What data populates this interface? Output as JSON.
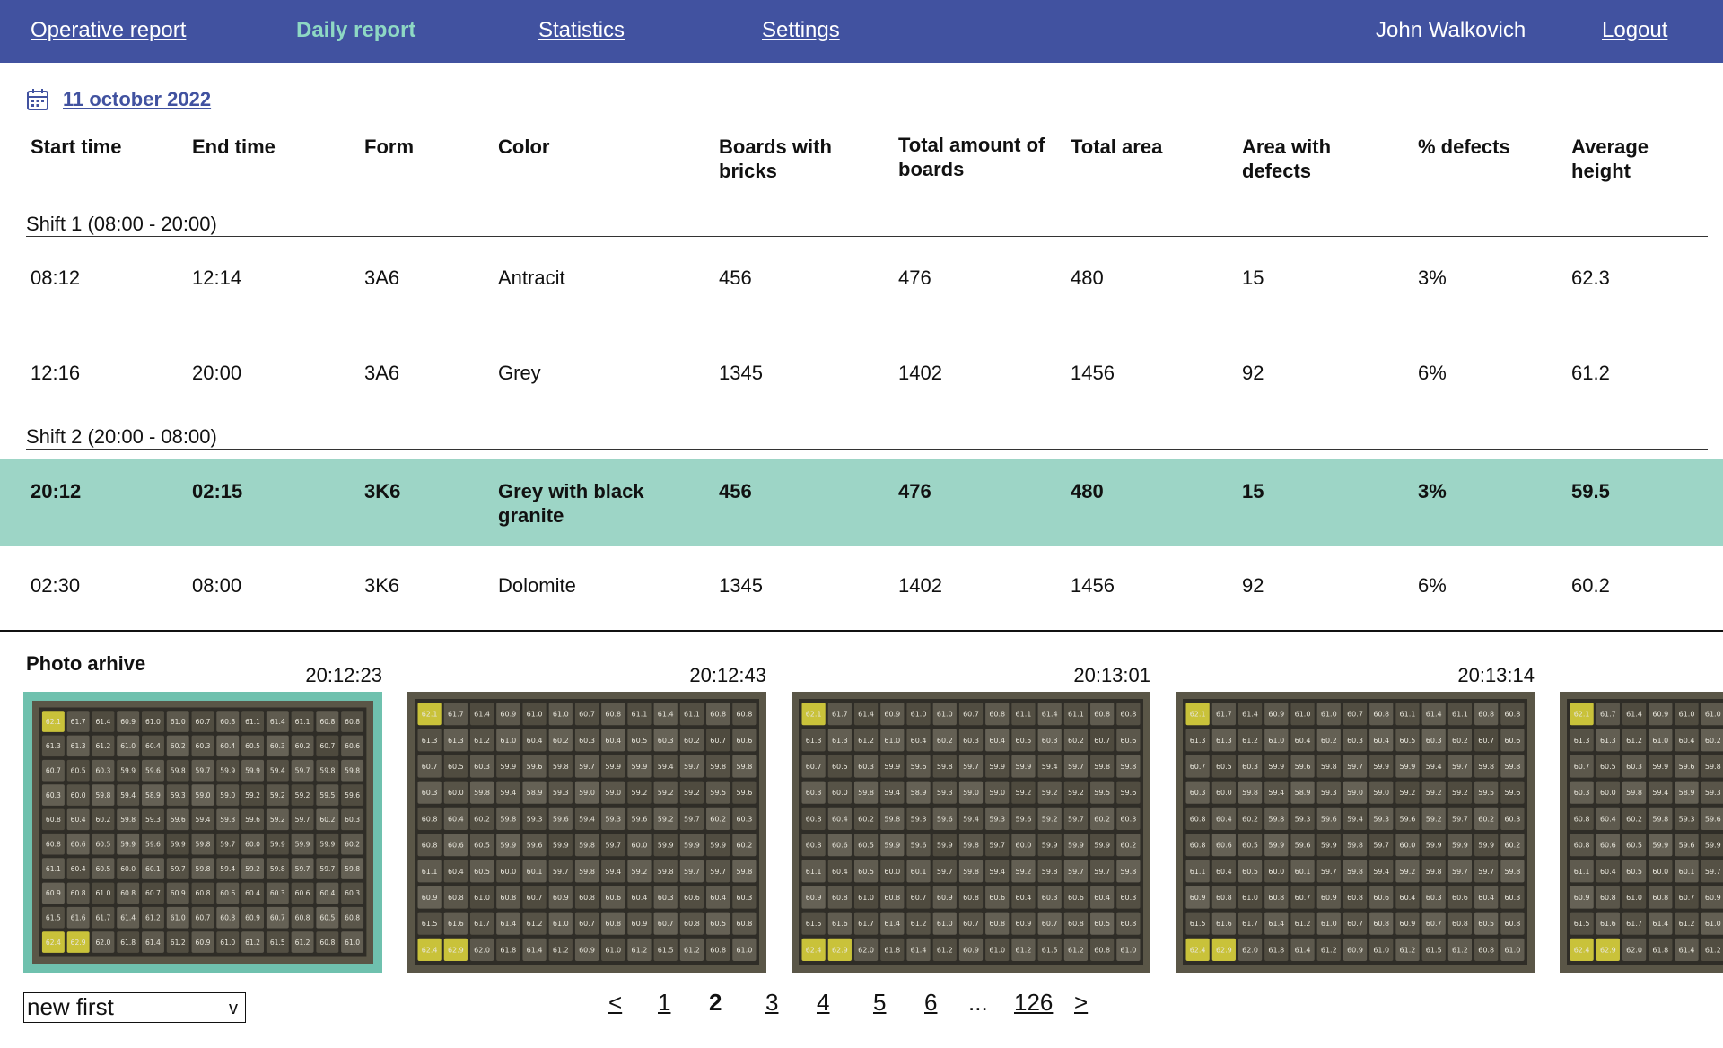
{
  "nav": {
    "items": [
      {
        "label": "Operative report",
        "active": false
      },
      {
        "label": "Daily report",
        "active": true
      },
      {
        "label": "Statistics",
        "active": false
      },
      {
        "label": "Settings",
        "active": false
      }
    ],
    "user_name": "John Walkovich",
    "logout_label": "Logout"
  },
  "date": {
    "label": "11 october 2022",
    "icon": "calendar-icon"
  },
  "table": {
    "headers": [
      "Start time",
      "End time",
      "Form",
      "Color",
      "Boards with bricks",
      "Total amount of boards",
      "Total area",
      "Area with defects",
      "% defects",
      "Average height"
    ],
    "shifts": [
      {
        "label": "Shift 1 (08:00 - 20:00)",
        "rows": [
          {
            "start": "08:12",
            "end": "12:14",
            "form": "3A6",
            "color": "Antracit",
            "boards_with_bricks": "456",
            "total_boards": "476",
            "total_area": "480",
            "area_defects": "15",
            "pct_defects": "3%",
            "avg_height": "62.3",
            "selected": false
          },
          {
            "start": "12:16",
            "end": "20:00",
            "form": "3A6",
            "color": "Grey",
            "boards_with_bricks": "1345",
            "total_boards": "1402",
            "total_area": "1456",
            "area_defects": "92",
            "pct_defects": "6%",
            "avg_height": "61.2",
            "selected": false
          }
        ]
      },
      {
        "label": "Shift 2 (20:00 - 08:00)",
        "rows": [
          {
            "start": "20:12",
            "end": "02:15",
            "form": "3K6",
            "color": "Grey with black granite",
            "boards_with_bricks": "456",
            "total_boards": "476",
            "total_area": "480",
            "area_defects": "15",
            "pct_defects": "3%",
            "avg_height": "59.5",
            "selected": true
          },
          {
            "start": "02:30",
            "end": "08:00",
            "form": "3K6",
            "color": "Dolomite",
            "boards_with_bricks": "1345",
            "total_boards": "1402",
            "total_area": "1456",
            "area_defects": "92",
            "pct_defects": "6%",
            "avg_height": "60.2",
            "selected": false
          }
        ]
      }
    ]
  },
  "archive": {
    "title": "Photo arhive",
    "photos": [
      {
        "time": "20:12:23",
        "selected": true
      },
      {
        "time": "20:12:43",
        "selected": false
      },
      {
        "time": "20:13:01",
        "selected": false
      },
      {
        "time": "20:13:14",
        "selected": false
      },
      {
        "time": "",
        "selected": false
      }
    ],
    "brick_rows": [
      [
        "62.1",
        "61.7",
        "61.4",
        "60.9",
        "61.0",
        "61.0",
        "60.7",
        "60.8",
        "61.1",
        "61.4",
        "61.1",
        "60.8",
        "60.8"
      ],
      [
        "61.3",
        "61.3",
        "61.2",
        "61.0",
        "60.4",
        "60.2",
        "60.3",
        "60.4",
        "60.5",
        "60.3",
        "60.2",
        "60.7",
        "60.6"
      ],
      [
        "60.7",
        "60.5",
        "60.3",
        "59.9",
        "59.6",
        "59.8",
        "59.7",
        "59.9",
        "59.9",
        "59.4",
        "59.7",
        "59.8",
        "59.8"
      ],
      [
        "60.3",
        "60.0",
        "59.8",
        "59.4",
        "58.9",
        "59.3",
        "59.0",
        "59.0",
        "59.2",
        "59.2",
        "59.2",
        "59.5",
        "59.6"
      ],
      [
        "60.8",
        "60.4",
        "60.2",
        "59.8",
        "59.3",
        "59.6",
        "59.4",
        "59.3",
        "59.6",
        "59.2",
        "59.7",
        "60.2",
        "60.3"
      ],
      [
        "60.8",
        "60.6",
        "60.5",
        "59.9",
        "59.6",
        "59.9",
        "59.8",
        "59.7",
        "60.0",
        "59.9",
        "59.9",
        "59.9",
        "60.2"
      ],
      [
        "61.1",
        "60.4",
        "60.5",
        "60.0",
        "60.1",
        "59.7",
        "59.8",
        "59.4",
        "59.2",
        "59.8",
        "59.7",
        "59.7",
        "59.8"
      ],
      [
        "60.9",
        "60.8",
        "61.0",
        "60.8",
        "60.7",
        "60.9",
        "60.8",
        "60.6",
        "60.4",
        "60.3",
        "60.6",
        "60.4",
        "60.3"
      ],
      [
        "61.5",
        "61.6",
        "61.7",
        "61.4",
        "61.2",
        "61.0",
        "60.7",
        "60.8",
        "60.9",
        "60.7",
        "60.8",
        "60.5",
        "60.8"
      ],
      [
        "62.4",
        "62.9",
        "62.0",
        "61.8",
        "61.4",
        "61.2",
        "60.9",
        "61.0",
        "61.2",
        "61.5",
        "61.2",
        "60.8",
        "61.0"
      ]
    ],
    "highlight_color": "#c9c23a"
  },
  "sort": {
    "selected": "new first",
    "caret": "v"
  },
  "pagination": {
    "prev": "<",
    "pages": [
      "1",
      "2",
      "3",
      "4",
      "5",
      "6"
    ],
    "current": "2",
    "ellipsis": "...",
    "last": "126",
    "next": ">"
  },
  "colors": {
    "header_bg": "#4152a0",
    "active_nav": "#8ed8c4",
    "selected_row": "#9dd5c6",
    "selected_photo_border": "#6fc1ae"
  }
}
